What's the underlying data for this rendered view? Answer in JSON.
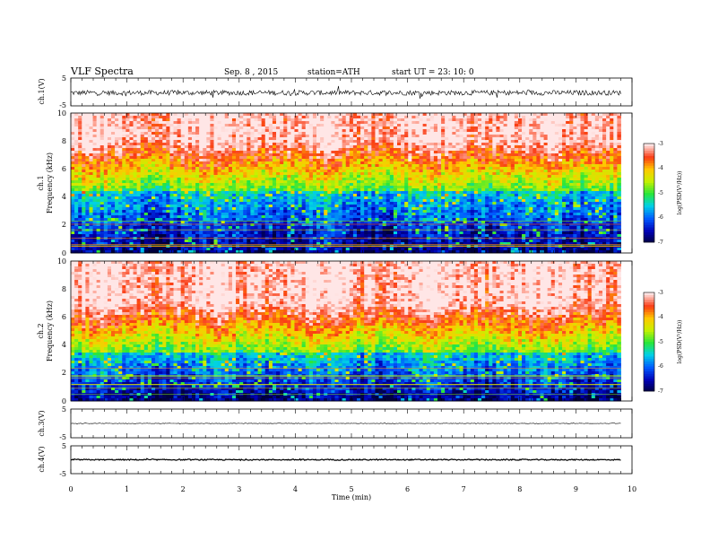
{
  "header": {
    "title": "VLF  Spectra",
    "date": "Sep. 8  , 2015",
    "station": "station=ATH",
    "start": "start  UT =   23: 10: 0"
  },
  "chart_data": {
    "type": "heatmap",
    "xlabel": "Time  (min)",
    "xlim": [
      0,
      10
    ],
    "xticks": [
      "0",
      "1",
      "2",
      "3",
      "4",
      "5",
      "6",
      "7",
      "8",
      "9",
      "10"
    ],
    "data_end_min": 9.8,
    "panels": [
      {
        "kind": "waveform",
        "ylabel": "ch.1(V)",
        "ylim": [
          -5,
          5
        ],
        "yticks": [
          "5",
          "-5"
        ],
        "offset_v": -0.3,
        "noise_amplitude_v": 0.9
      },
      {
        "kind": "spectrogram",
        "ylabel_line1": "ch.1",
        "ylabel_line2": "Frequency  (kHz)",
        "ylim": [
          0,
          10
        ],
        "yticks": [
          "0",
          "2",
          "4",
          "6",
          "8",
          "10"
        ],
        "noise_boundary_khz": 4.5,
        "colorbar": {
          "label": "log(PSD(V²/Hz))",
          "range": [
            -7,
            -3
          ],
          "ticks": [
            "-3",
            "-4",
            "-5",
            "-6",
            "-7"
          ]
        }
      },
      {
        "kind": "spectrogram",
        "ylabel_line1": "ch.2",
        "ylabel_line2": "Frequency  (kHz)",
        "ylim": [
          0,
          10
        ],
        "yticks": [
          "0",
          "2",
          "4",
          "6",
          "8",
          "10"
        ],
        "noise_boundary_khz": 3.5,
        "colorbar": {
          "label": "log(PSD(V²/Hz))",
          "range": [
            -7,
            -3
          ],
          "ticks": [
            "-3",
            "-4",
            "-5",
            "-6",
            "-7"
          ]
        }
      },
      {
        "kind": "waveform",
        "ylabel": "ch.3(V)",
        "ylim": [
          -5,
          5
        ],
        "yticks": [
          "5",
          "-5"
        ],
        "offset_v": 0.0,
        "noise_amplitude_v": 0.1
      },
      {
        "kind": "waveform",
        "ylabel": "ch.4(V)",
        "ylim": [
          -5,
          5
        ],
        "yticks": [
          "5",
          "-5"
        ],
        "offset_v": 0.0,
        "noise_amplitude_v": 0.2
      }
    ]
  }
}
